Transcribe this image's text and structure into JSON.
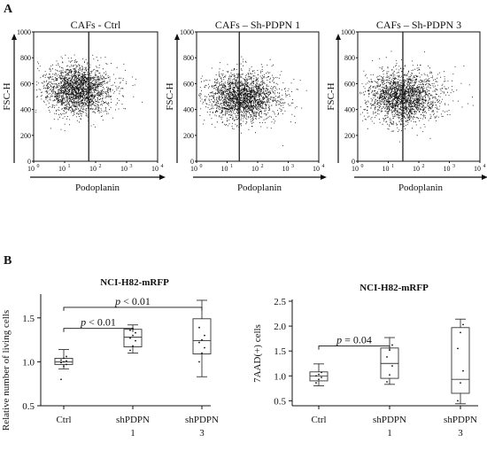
{
  "figure": {
    "panel_a_label": "A",
    "panel_b_label": "B"
  },
  "chart_data": [
    {
      "type": "scatter",
      "title": "CAFs - Ctrl",
      "xlabel": "Podoplanin",
      "ylabel": "FSC-H",
      "x_scale": "log",
      "xlim": [
        1,
        10000
      ],
      "x_tick_labels": [
        "10",
        "10",
        "10",
        "10",
        "10"
      ],
      "x_tick_exponents": [
        "0",
        "1",
        "2",
        "3",
        "4"
      ],
      "ylim": [
        0,
        1000
      ],
      "y_ticks": [
        "0",
        "200",
        "400",
        "600",
        "800",
        "1000"
      ],
      "gate_x": 60,
      "population": {
        "center_log_x": 1.4,
        "center_y": 560,
        "spread_log_x": 0.55,
        "spread_y": 95,
        "count": 2200
      }
    },
    {
      "type": "scatter",
      "title": "CAFs – Sh-PDPN 1",
      "xlabel": "Podoplanin",
      "ylabel": "FSC-H",
      "x_scale": "log",
      "xlim": [
        1,
        10000
      ],
      "x_tick_labels": [
        "10",
        "10",
        "10",
        "10",
        "10"
      ],
      "x_tick_exponents": [
        "0",
        "1",
        "2",
        "3",
        "4"
      ],
      "ylim": [
        0,
        1000
      ],
      "y_ticks": [
        "0",
        "200",
        "400",
        "600",
        "800",
        "1000"
      ],
      "gate_x": 25,
      "population": {
        "center_log_x": 1.5,
        "center_y": 500,
        "spread_log_x": 0.6,
        "spread_y": 95,
        "count": 2200
      }
    },
    {
      "type": "scatter",
      "title": "CAFs – Sh-PDPN 3",
      "xlabel": "Podoplanin",
      "ylabel": "FSC-H",
      "x_scale": "log",
      "xlim": [
        1,
        10000
      ],
      "x_tick_labels": [
        "10",
        "10",
        "10",
        "10",
        "10"
      ],
      "x_tick_exponents": [
        "0",
        "1",
        "2",
        "3",
        "4"
      ],
      "ylim": [
        0,
        1000
      ],
      "y_ticks": [
        "0",
        "200",
        "400",
        "600",
        "800",
        "1000"
      ],
      "gate_x": 30,
      "population": {
        "center_log_x": 1.45,
        "center_y": 500,
        "spread_log_x": 0.6,
        "spread_y": 100,
        "count": 2200
      }
    },
    {
      "type": "box",
      "title": "NCI-H82-mRFP",
      "ylabel": "Relative number of living cells",
      "categories": [
        [
          "Ctrl"
        ],
        [
          "shPDPN",
          "1"
        ],
        [
          "shPDPN",
          "3"
        ]
      ],
      "ylim": [
        0.5,
        1.75
      ],
      "y_ticks": [
        "0.5",
        "1.0",
        "1.5"
      ],
      "boxes": [
        {
          "min": 0.92,
          "q1": 0.97,
          "median": 1.0,
          "q3": 1.04,
          "max": 1.14,
          "points": [
            0.8,
            0.95,
            0.97,
            0.99,
            1.0,
            1.01,
            1.02,
            1.04,
            1.06
          ]
        },
        {
          "min": 1.1,
          "q1": 1.17,
          "median": 1.28,
          "q3": 1.37,
          "max": 1.42,
          "points": [
            1.13,
            1.18,
            1.24,
            1.27,
            1.3,
            1.33,
            1.36,
            1.38
          ]
        },
        {
          "min": 0.83,
          "q1": 1.09,
          "median": 1.24,
          "q3": 1.49,
          "max": 1.7,
          "points": [
            1.0,
            1.1,
            1.16,
            1.22,
            1.25,
            1.3,
            1.39
          ]
        }
      ],
      "annotations": [
        {
          "p_text": "p",
          "rest": " < 0.01",
          "from": 0,
          "to": 1,
          "y": 1.38
        },
        {
          "p_text": "p",
          "rest": " < 0.01",
          "from": 0,
          "to": 2,
          "y": 1.62
        }
      ]
    },
    {
      "type": "box",
      "title": "NCI-H82-mRFP",
      "ylabel": "7AAD(+) cells",
      "categories": [
        [
          "Ctrl"
        ],
        [
          "shPDPN",
          "1"
        ],
        [
          "shPDPN",
          "3"
        ]
      ],
      "ylim": [
        0.4,
        2.5
      ],
      "y_ticks": [
        "0.5",
        "1.0",
        "1.5",
        "2.0",
        "2.5"
      ],
      "boxes": [
        {
          "min": 0.8,
          "q1": 0.9,
          "median": 1.0,
          "q3": 1.08,
          "max": 1.24,
          "points": [
            0.86,
            0.93,
            0.97,
            1.0,
            1.03,
            1.07
          ]
        },
        {
          "min": 0.83,
          "q1": 0.95,
          "median": 1.25,
          "q3": 1.56,
          "max": 1.77,
          "points": [
            0.88,
            1.02,
            1.2,
            1.38,
            1.52,
            1.62
          ]
        },
        {
          "min": 0.44,
          "q1": 0.65,
          "median": 0.93,
          "q3": 1.97,
          "max": 2.14,
          "points": [
            0.5,
            0.86,
            1.1,
            1.55,
            1.87,
            2.03
          ]
        }
      ],
      "annotations": [
        {
          "p_text": "p",
          "rest": " = 0.04",
          "from": 0,
          "to": 1,
          "y": 1.6
        }
      ]
    }
  ]
}
